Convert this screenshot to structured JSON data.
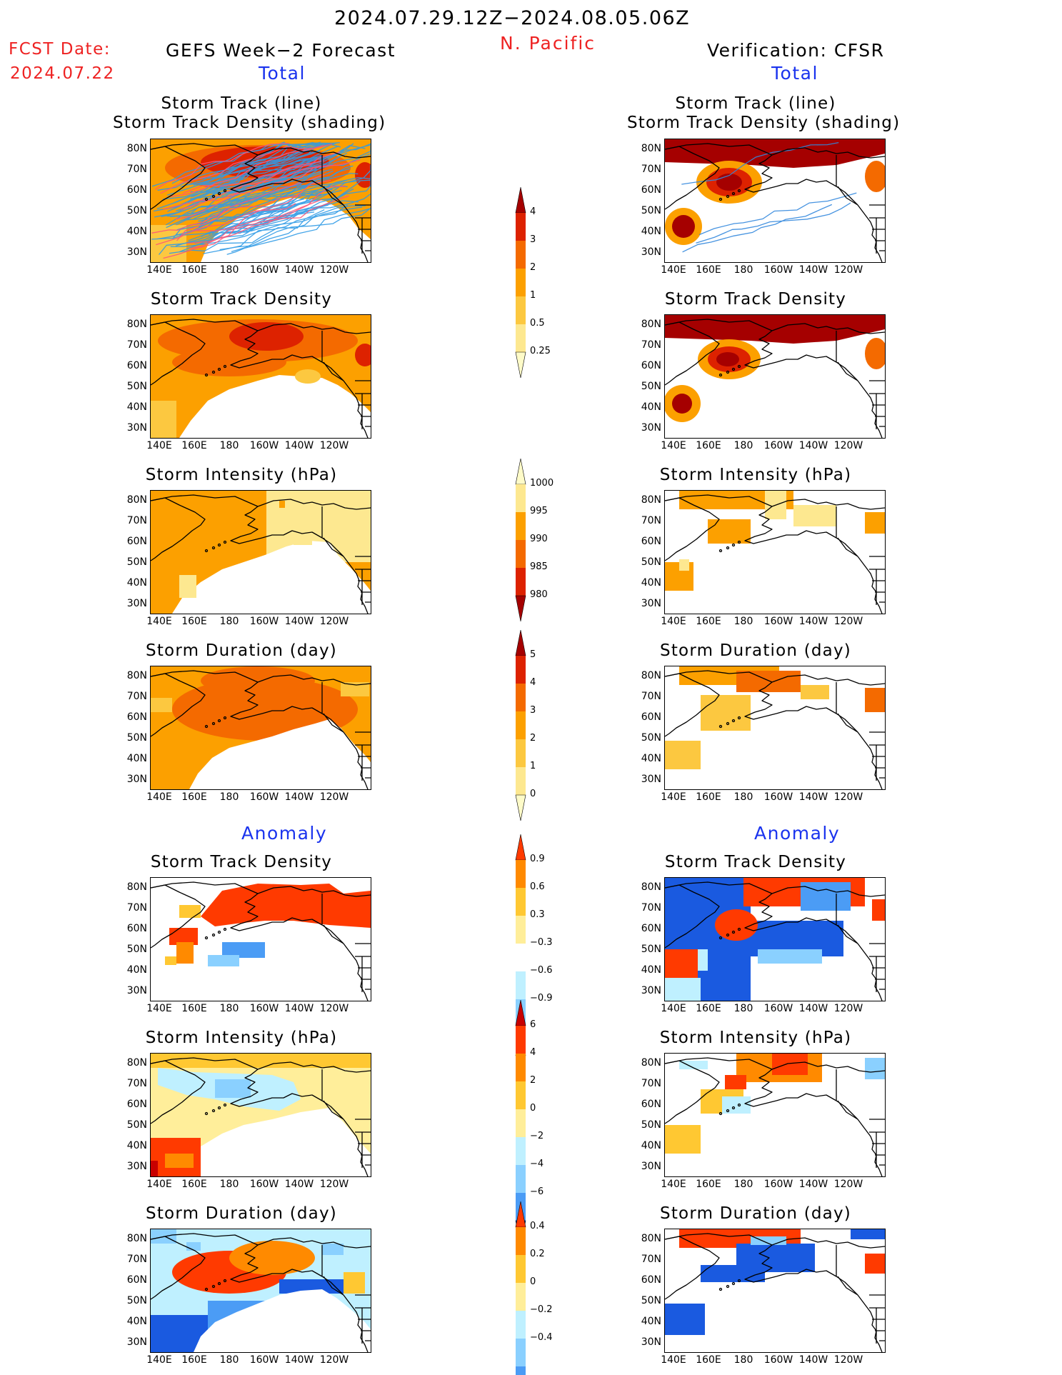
{
  "header": {
    "date_range": "2024.07.29.12Z−2024.08.05.06Z",
    "region": "N. Pacific",
    "fcst_label": "FCST Date:",
    "fcst_date": "2024.07.22",
    "left_title": "GEFS Week−2 Forecast",
    "right_title": "Verification: CFSR",
    "total_label": "Total",
    "anomaly_label": "Anomaly"
  },
  "axes": {
    "lat_labels": [
      "80N",
      "70N",
      "60N",
      "50N",
      "40N",
      "30N"
    ],
    "lon_labels": [
      "140E",
      "160E",
      "180",
      "160W",
      "140W",
      "120W"
    ]
  },
  "panels": [
    {
      "title_lines": [
        "Storm Track (line)",
        "Storm Track Density (shading)"
      ]
    },
    {
      "title_lines": [
        "Storm Track Density"
      ]
    },
    {
      "title_lines": [
        "Storm Intensity (hPa)"
      ]
    },
    {
      "title_lines": [
        "Storm Duration (day)"
      ]
    },
    {
      "title_lines": [
        "Storm Track Density"
      ]
    },
    {
      "title_lines": [
        "Storm Intensity (hPa)"
      ]
    },
    {
      "title_lines": [
        "Storm Duration (day)"
      ]
    }
  ],
  "colorbars": [
    {
      "labels": [
        "4",
        "3",
        "2",
        "1",
        "0.5",
        "0.25"
      ],
      "colors": [
        "#a50000",
        "#dd2200",
        "#f46a00",
        "#fca000",
        "#fcc840",
        "#fde890",
        "#fefbc8"
      ],
      "tails": "both"
    },
    {
      "labels": [
        "1000",
        "995",
        "990",
        "985",
        "980"
      ],
      "colors": [
        "#fefbc8",
        "#fde890",
        "#fca000",
        "#f46a00",
        "#dd2200",
        "#a50000"
      ],
      "tails": "both"
    },
    {
      "labels": [
        "5",
        "4",
        "3",
        "2",
        "1",
        "0"
      ],
      "colors": [
        "#a50000",
        "#dd2200",
        "#f46a00",
        "#fca000",
        "#fcc840",
        "#fde890",
        "#fefbc8"
      ],
      "tails": "both"
    },
    {
      "labels": [
        "0.9",
        "0.6",
        "0.3",
        "−0.3",
        "−0.6",
        "−0.9"
      ],
      "colors": [
        "#ff3a00",
        "#ff8a00",
        "#ffc832",
        "#ffee9a",
        "#ffffff",
        "#bff0ff",
        "#8ad0ff",
        "#4b9cf5",
        "#1a5ae0"
      ],
      "tails": "both"
    },
    {
      "labels": [
        "6",
        "4",
        "2",
        "0",
        "−2",
        "−4",
        "−6"
      ],
      "colors": [
        "#c80000",
        "#ff3a00",
        "#ff8a00",
        "#ffc832",
        "#ffee9a",
        "#bff0ff",
        "#8ad0ff",
        "#4b9cf5",
        "#1a5ae0"
      ],
      "tails": "both"
    },
    {
      "labels": [
        "0.4",
        "0.2",
        "0",
        "−0.2",
        "−0.4"
      ],
      "colors": [
        "#ff3a00",
        "#ff8a00",
        "#ffc832",
        "#ffee9a",
        "#bff0ff",
        "#8ad0ff",
        "#4b9cf5",
        "#1a5ae0"
      ],
      "tails": "both"
    }
  ],
  "map_features": [
    "alaska-coastline",
    "western-north-america-coastline",
    "us-state-borders",
    "kamchatka-coastline"
  ]
}
